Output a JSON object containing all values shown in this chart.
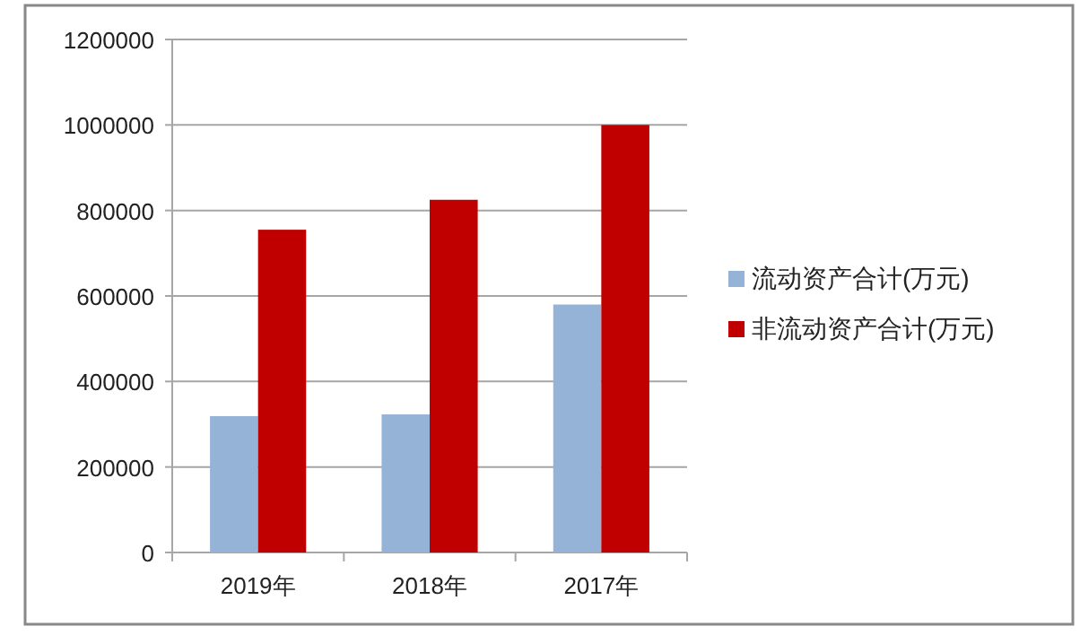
{
  "chart_data": {
    "type": "bar",
    "categories": [
      "2019年",
      "2018年",
      "2017年"
    ],
    "series": [
      {
        "name": "流动资产合计(万元)",
        "color": "#95b3d7",
        "values": [
          319000,
          323000,
          580000
        ]
      },
      {
        "name": "非流动资产合计(万元)",
        "color": "#c00000",
        "values": [
          755000,
          825000,
          1000000
        ]
      }
    ],
    "ylim": [
      0,
      1200000
    ],
    "yticks": [
      0,
      200000,
      400000,
      600000,
      800000,
      1000000,
      1200000
    ],
    "grid": "y",
    "legend": "right"
  }
}
